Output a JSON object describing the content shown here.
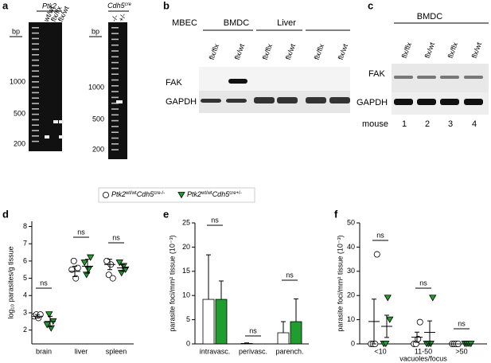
{
  "panels": {
    "a": {
      "letter": "a",
      "gene": "Ptk2",
      "cre_gene": "Cdh5",
      "cre_sup": "cre",
      "bp": "bp",
      "lanes1": [
        "wt/wt",
        "flx/flx",
        "flx/wt"
      ],
      "lanes2": [
        "-/-",
        "+/-"
      ],
      "sizes": [
        "1000",
        "500",
        "200"
      ]
    },
    "b": {
      "letter": "b",
      "groups": [
        "MBEC",
        "BMDC",
        "Liver"
      ],
      "lanes": [
        "flx/flx",
        "flx/wt",
        "flx/flx",
        "flx/wt",
        "flx/flx",
        "flx/wt"
      ],
      "rows": [
        "FAK",
        "GAPDH"
      ]
    },
    "c": {
      "letter": "c",
      "group": "BMDC",
      "lanes": [
        "flx/flx",
        "flx/wt",
        "flx/flx",
        "flx/wt"
      ],
      "rows": [
        "FAK",
        "GAPDH"
      ],
      "mouse": "mouse",
      "mice": [
        "1",
        "2",
        "3",
        "4"
      ]
    }
  },
  "legend": [
    {
      "parts": [
        "Ptk2",
        "wt/wt",
        "Cdh5",
        "cre-/-"
      ],
      "marker": "circle",
      "color": "#ffffff"
    },
    {
      "parts": [
        "Ptk2",
        "wt/wt",
        "Cdh5",
        "cre+/-"
      ],
      "marker": "triangle",
      "color": "#1f9e2f"
    }
  ],
  "chart_data": [
    {
      "type": "strip",
      "letter": "d",
      "ylabel": "log₁₀ parasites/g tissue",
      "categories": [
        "brain",
        "liver",
        "spleen"
      ],
      "annotations": [
        "ns",
        "ns",
        "ns"
      ],
      "ylim": [
        1.2,
        8.3
      ],
      "yticks": [
        2,
        3,
        4,
        5,
        6,
        7,
        8
      ],
      "series": [
        {
          "marker": "circle",
          "color": "#ffffff",
          "values": [
            [
              2.8,
              2.9,
              2.7,
              2.9
            ],
            [
              5.5,
              6.0,
              5.0,
              5.6
            ],
            [
              6.0,
              5.2,
              5.8,
              5.0
            ]
          ],
          "mean": [
            2.8,
            5.4,
            5.8
          ],
          "sem": [
            0.1,
            0.3,
            0.3
          ]
        },
        {
          "marker": "triangle",
          "color": "#1f9e2f",
          "values": [
            [
              2.3,
              2.9,
              2.1,
              2.5
            ],
            [
              5.9,
              5.2,
              5.5,
              6.2
            ],
            [
              5.9,
              5.3,
              5.7,
              5.5
            ]
          ],
          "mean": [
            2.5,
            5.7,
            5.6
          ],
          "sem": [
            0.3,
            0.4,
            0.2
          ]
        }
      ]
    },
    {
      "type": "bar",
      "letter": "e",
      "ylabel": "parasite foci/mm² tissue (10⁻³)",
      "categories": [
        "intravasc.",
        "perivasc.",
        "parench."
      ],
      "annotations": [
        "ns",
        "ns",
        "ns"
      ],
      "ylim": [
        0,
        25
      ],
      "yticks": [
        0,
        5,
        10,
        15,
        20,
        25
      ],
      "series": [
        {
          "color": "#ffffff",
          "values": [
            9.2,
            0.1,
            2.3
          ],
          "errors": [
            9.2,
            0.1,
            2.3
          ]
        },
        {
          "color": "#1f9e2f",
          "values": [
            9.2,
            0,
            4.6
          ],
          "errors": [
            3.8,
            0,
            4.7
          ]
        }
      ]
    },
    {
      "type": "strip",
      "letter": "f",
      "ylabel": "parasite foci/mm² tissue (10⁻³)",
      "xlabel": "vacuoles/focus",
      "categories": [
        "<10",
        "11-50",
        ">50"
      ],
      "annotations": [
        "ns",
        "ns",
        "ns"
      ],
      "ylim": [
        0,
        50
      ],
      "yticks": [
        0,
        10,
        20,
        30,
        40,
        50
      ],
      "series": [
        {
          "marker": "circle",
          "color": "#ffffff",
          "values": [
            [
              0,
              0,
              0,
              37
            ],
            [
              0,
              0,
              2,
              9
            ],
            [
              0,
              0,
              0,
              0
            ]
          ],
          "mean": [
            9.25,
            2.75,
            0
          ],
          "sem": [
            9.25,
            2.1,
            0
          ]
        },
        {
          "marker": "triangle",
          "color": "#1f9e2f",
          "values": [
            [
              0,
              0,
              19,
              10
            ],
            [
              0,
              0,
              0,
              19
            ],
            [
              0,
              0,
              0,
              0
            ]
          ],
          "mean": [
            7.25,
            4.75,
            0
          ],
          "sem": [
            4.6,
            4.75,
            0
          ]
        }
      ]
    }
  ]
}
